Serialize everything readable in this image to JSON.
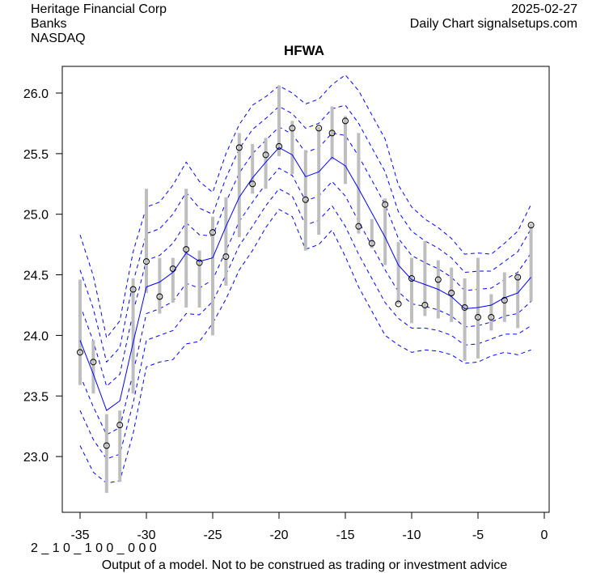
{
  "header": {
    "company": "Heritage Financial Corp",
    "sector": "Banks",
    "exchange": "NASDAQ",
    "date": "2025-02-27",
    "source": "Daily Chart signalsetups.com"
  },
  "footer": {
    "code": "2 _ 1 0 _ 1 0 0 _ 0 0 0",
    "disclaimer": "Output of a model. Not to be construed as trading or investment advice"
  },
  "chart_data": {
    "type": "line",
    "title": "HFWA",
    "xlabel": "",
    "ylabel": "",
    "xlim": [
      -36,
      0
    ],
    "ylim": [
      22.65,
      26.2
    ],
    "x_ticks": [
      "-35",
      "-30",
      "-25",
      "-20",
      "-15",
      "-10",
      "-5",
      "0"
    ],
    "x_tick_values": [
      -35,
      -30,
      -25,
      -20,
      -15,
      -10,
      -5,
      0
    ],
    "y_ticks": [
      "23.0",
      "23.5",
      "24.0",
      "24.5",
      "25.0",
      "25.5",
      "26.0"
    ],
    "y_tick_values": [
      23.0,
      23.5,
      24.0,
      24.5,
      25.0,
      25.5,
      26.0
    ],
    "grid": false,
    "colors": {
      "range_bar": "#bebebe",
      "ma_line": "#0000ff",
      "bands": "#0000ff",
      "close_marker": "#000000"
    },
    "x": [
      -35,
      -34,
      -33,
      -32,
      -31,
      -30,
      -29,
      -28,
      -27,
      -26,
      -25,
      -24,
      -23,
      -22,
      -21,
      -20,
      -19,
      -18,
      -17,
      -16,
      -15,
      -14,
      -13,
      -12,
      -11,
      -10,
      -9,
      -8,
      -7,
      -6,
      -5,
      -4,
      -3,
      -2,
      -1
    ],
    "close": [
      23.86,
      23.78,
      23.09,
      23.26,
      24.38,
      24.61,
      24.32,
      24.55,
      24.71,
      24.6,
      24.85,
      24.65,
      25.55,
      25.25,
      25.49,
      25.56,
      25.71,
      25.12,
      25.71,
      25.67,
      25.77,
      24.9,
      24.76,
      25.08,
      24.26,
      24.47,
      24.25,
      24.46,
      24.35,
      24.23,
      24.15,
      24.15,
      24.29,
      24.48,
      24.91
    ],
    "high": [
      24.46,
      23.96,
      23.35,
      23.38,
      24.47,
      25.21,
      24.64,
      24.64,
      25.21,
      24.7,
      24.98,
      25.14,
      25.67,
      25.58,
      25.63,
      26.06,
      25.77,
      25.53,
      25.72,
      25.89,
      25.81,
      25.67,
      24.96,
      25.13,
      24.77,
      24.64,
      24.78,
      24.62,
      24.56,
      24.47,
      24.64,
      24.34,
      24.52,
      24.5,
      24.92
    ],
    "low": [
      23.59,
      23.52,
      22.7,
      22.79,
      23.52,
      24.35,
      24.18,
      24.27,
      24.23,
      24.23,
      24.0,
      24.41,
      24.81,
      25.17,
      25.21,
      25.48,
      25.33,
      24.7,
      24.83,
      25.45,
      25.25,
      24.84,
      24.72,
      24.58,
      24.26,
      24.1,
      24.16,
      24.14,
      24.11,
      23.79,
      23.81,
      24.04,
      24.11,
      24.06,
      24.28
    ],
    "series": [
      {
        "name": "moving average",
        "values": [
          23.96,
          23.68,
          23.38,
          23.46,
          23.94,
          24.4,
          24.44,
          24.52,
          24.68,
          24.61,
          24.64,
          24.9,
          25.14,
          25.3,
          25.43,
          25.55,
          25.49,
          25.31,
          25.35,
          25.47,
          25.4,
          25.21,
          25.01,
          24.81,
          24.58,
          24.46,
          24.42,
          24.38,
          24.32,
          24.22,
          24.23,
          24.25,
          24.31,
          24.35,
          24.48
        ]
      },
      {
        "name": "band width",
        "values": [
          0.29,
          0.27,
          0.2,
          0.22,
          0.25,
          0.22,
          0.22,
          0.24,
          0.25,
          0.22,
          0.18,
          0.2,
          0.2,
          0.2,
          0.18,
          0.17,
          0.17,
          0.2,
          0.2,
          0.2,
          0.25,
          0.27,
          0.27,
          0.27,
          0.22,
          0.2,
          0.18,
          0.17,
          0.16,
          0.15,
          0.15,
          0.14,
          0.15,
          0.17,
          0.2
        ]
      }
    ]
  }
}
